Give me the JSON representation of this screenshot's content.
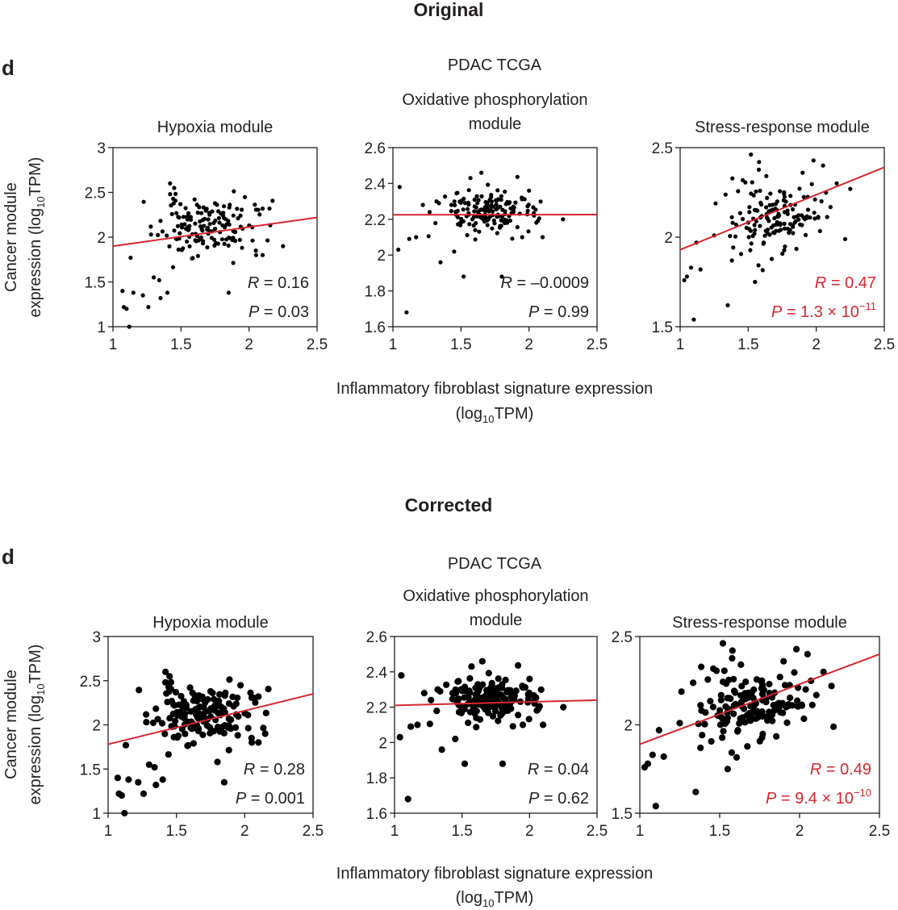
{
  "chart_data": {
    "type": "scatter",
    "figure_title": "PDAC TCGA",
    "panel_letter": "d",
    "xlabel": "Inflammatory fibroblast signature expression",
    "xlabel_units": {
      "prefix": "(log",
      "sub": "10",
      "suffix": "TPM)"
    },
    "ylabel": "Cancer module",
    "ylabel_units": {
      "prefix": "expression (log",
      "sub": "10",
      "suffix": "TPM)"
    },
    "colors": {
      "points": "#000000",
      "fit_line": "#d7262e",
      "stat_black": "#231f20",
      "stat_red": "#d7262e"
    },
    "versions": [
      {
        "heading": "Original",
        "point_style": "small",
        "panels": [
          {
            "title_lines": [
              "Hypoxia module"
            ],
            "xlim": [
              1,
              2.5
            ],
            "ylim": [
              1,
              3
            ],
            "xticks": [
              1,
              1.5,
              2,
              2.5
            ],
            "xtick_labels": [
              "1",
              "1.5",
              "2",
              "2.5"
            ],
            "yticks": [
              1,
              1.5,
              2,
              2.5,
              3
            ],
            "ytick_labels": [
              "1",
              "1.5",
              "2",
              "2.5",
              "3"
            ],
            "fit_line": {
              "x0": 1,
              "y0": 1.9,
              "x1": 2.5,
              "y1": 2.22
            },
            "stats": {
              "R": "0.16",
              "P_base": "0.03",
              "P_exp": null,
              "color": "black"
            },
            "cluster": {
              "cx": 1.68,
              "cy": 2.12,
              "sx": 0.17,
              "sy": 0.16,
              "n": 150,
              "seed": 11
            },
            "extra_points": [
              [
                1.08,
                1.22
              ],
              [
                1.1,
                1.2
              ],
              [
                1.12,
                1.0
              ],
              [
                1.07,
                1.4
              ],
              [
                1.15,
                1.38
              ],
              [
                1.22,
                1.35
              ],
              [
                1.26,
                1.22
              ],
              [
                1.3,
                1.55
              ],
              [
                1.35,
                1.32
              ],
              [
                1.4,
                1.38
              ],
              [
                1.13,
                1.77
              ],
              [
                1.28,
                2.03
              ],
              [
                1.34,
                1.52
              ],
              [
                1.45,
                2.55
              ],
              [
                1.42,
                2.6
              ],
              [
                1.85,
                1.38
              ],
              [
                2.1,
                2.32
              ],
              [
                2.15,
                2.32
              ],
              [
                2.05,
                1.85
              ],
              [
                2.1,
                1.8
              ],
              [
                2.25,
                1.9
              ]
            ]
          },
          {
            "title_lines": [
              "Oxidative phosphorylation",
              "module"
            ],
            "xlim": [
              1,
              2.5
            ],
            "ylim": [
              1.6,
              2.6
            ],
            "xticks": [
              1,
              1.5,
              2,
              2.5
            ],
            "xtick_labels": [
              "1",
              "1.5",
              "2",
              "2.5"
            ],
            "yticks": [
              1.6,
              1.8,
              2,
              2.2,
              2.4,
              2.6
            ],
            "ytick_labels": [
              "1.6",
              "1.8",
              "2",
              "2.2",
              "2.4",
              "2.6"
            ],
            "fit_line": {
              "x0": 1,
              "y0": 2.225,
              "x1": 2.5,
              "y1": 2.226
            },
            "stats": {
              "R": "–0.0009",
              "P_base": "0.99",
              "P_exp": null,
              "color": "black"
            },
            "cluster": {
              "cx": 1.7,
              "cy": 2.24,
              "sx": 0.17,
              "sy": 0.06,
              "n": 155,
              "seed": 23
            },
            "extra_points": [
              [
                1.1,
                1.68
              ],
              [
                1.05,
                2.38
              ],
              [
                1.04,
                2.03
              ],
              [
                1.12,
                2.09
              ],
              [
                1.17,
                2.1
              ],
              [
                1.27,
                2.24
              ],
              [
                1.35,
                1.96
              ],
              [
                1.45,
                2.02
              ],
              [
                1.52,
                1.88
              ],
              [
                1.57,
                2.43
              ],
              [
                1.65,
                2.46
              ],
              [
                1.8,
                1.88
              ],
              [
                1.95,
                2.1
              ],
              [
                2.0,
                2.36
              ],
              [
                2.25,
                2.2
              ],
              [
                2.1,
                2.1
              ],
              [
                1.32,
                2.3
              ],
              [
                1.22,
                2.28
              ]
            ]
          },
          {
            "title_lines": [
              "Stress-response module"
            ],
            "xlim": [
              1,
              2.5
            ],
            "ylim": [
              1.5,
              2.5
            ],
            "xticks": [
              1,
              1.5,
              2,
              2.5
            ],
            "xtick_labels": [
              "1",
              "1.5",
              "2",
              "2.5"
            ],
            "yticks": [
              1.5,
              2,
              2.5
            ],
            "ytick_labels": [
              "1.5",
              "2",
              "2.5"
            ],
            "fit_line": {
              "x0": 1,
              "y0": 1.93,
              "x1": 2.5,
              "y1": 2.39
            },
            "stats": {
              "R": "0.47",
              "P_base": "1.3 × 10",
              "P_exp": "−11",
              "color": "red"
            },
            "cluster": {
              "cx": 1.72,
              "cy": 2.12,
              "sx": 0.17,
              "sy": 0.11,
              "n": 150,
              "seed": 37
            },
            "extra_points": [
              [
                1.03,
                1.76
              ],
              [
                1.05,
                1.78
              ],
              [
                1.08,
                1.83
              ],
              [
                1.1,
                1.54
              ],
              [
                1.12,
                1.97
              ],
              [
                1.15,
                1.82
              ],
              [
                1.25,
                2.01
              ],
              [
                1.35,
                1.62
              ],
              [
                1.38,
                1.87
              ],
              [
                1.55,
                1.75
              ],
              [
                1.58,
                2.42
              ],
              [
                1.9,
                2.36
              ],
              [
                2.05,
                2.4
              ],
              [
                2.15,
                2.3
              ],
              [
                2.25,
                2.27
              ]
            ]
          }
        ]
      },
      {
        "heading": "Corrected",
        "point_style": "large",
        "panels": [
          {
            "title_lines": [
              "Hypoxia module"
            ],
            "xlim": [
              1,
              2.5
            ],
            "ylim": [
              1,
              3
            ],
            "xticks": [
              1,
              1.5,
              2,
              2.5
            ],
            "xtick_labels": [
              "1",
              "1.5",
              "2",
              "2.5"
            ],
            "yticks": [
              1,
              1.5,
              2,
              2.5,
              3
            ],
            "ytick_labels": [
              "1",
              "1.5",
              "2",
              "2.5",
              "3"
            ],
            "fit_line": {
              "x0": 1,
              "y0": 1.78,
              "x1": 2.5,
              "y1": 2.35
            },
            "stats": {
              "R": "0.28",
              "P_base": "0.001",
              "P_exp": null,
              "color": "black"
            },
            "cluster": {
              "cx": 1.68,
              "cy": 2.12,
              "sx": 0.17,
              "sy": 0.16,
              "n": 150,
              "seed": 11
            },
            "extra_points": [
              [
                1.08,
                1.22
              ],
              [
                1.1,
                1.2
              ],
              [
                1.12,
                1.0
              ],
              [
                1.07,
                1.4
              ],
              [
                1.15,
                1.38
              ],
              [
                1.22,
                1.35
              ],
              [
                1.26,
                1.22
              ],
              [
                1.3,
                1.55
              ],
              [
                1.35,
                1.32
              ],
              [
                1.4,
                1.38
              ],
              [
                1.13,
                1.77
              ],
              [
                1.28,
                2.03
              ],
              [
                1.34,
                1.52
              ],
              [
                1.45,
                2.55
              ],
              [
                1.42,
                2.6
              ],
              [
                1.85,
                1.35
              ],
              [
                2.1,
                2.32
              ],
              [
                2.15,
                1.9
              ],
              [
                2.05,
                1.85
              ],
              [
                2.1,
                1.8
              ],
              [
                1.8,
                1.58
              ]
            ]
          },
          {
            "title_lines": [
              "Oxidative phosphorylation",
              "module"
            ],
            "xlim": [
              1,
              2.5
            ],
            "ylim": [
              1.6,
              2.6
            ],
            "xticks": [
              1,
              1.5,
              2,
              2.5
            ],
            "xtick_labels": [
              "1",
              "1.5",
              "2",
              "2.5"
            ],
            "yticks": [
              1.6,
              1.8,
              2,
              2.2,
              2.4,
              2.6
            ],
            "ytick_labels": [
              "1.6",
              "1.8",
              "2",
              "2.2",
              "2.4",
              "2.6"
            ],
            "fit_line": {
              "x0": 1,
              "y0": 2.21,
              "x1": 2.5,
              "y1": 2.24
            },
            "stats": {
              "R": "0.04",
              "P_base": "0.62",
              "P_exp": null,
              "color": "black"
            },
            "cluster": {
              "cx": 1.7,
              "cy": 2.24,
              "sx": 0.17,
              "sy": 0.06,
              "n": 155,
              "seed": 23
            },
            "extra_points": [
              [
                1.1,
                1.68
              ],
              [
                1.05,
                2.38
              ],
              [
                1.04,
                2.03
              ],
              [
                1.12,
                2.09
              ],
              [
                1.17,
                2.1
              ],
              [
                1.27,
                2.24
              ],
              [
                1.35,
                1.96
              ],
              [
                1.45,
                2.02
              ],
              [
                1.52,
                1.88
              ],
              [
                1.57,
                2.43
              ],
              [
                1.65,
                2.46
              ],
              [
                1.8,
                1.88
              ],
              [
                1.95,
                2.1
              ],
              [
                2.0,
                2.36
              ],
              [
                2.25,
                2.2
              ],
              [
                2.1,
                2.1
              ],
              [
                1.32,
                2.3
              ],
              [
                1.22,
                2.28
              ]
            ]
          },
          {
            "title_lines": [
              "Stress-response module"
            ],
            "xlim": [
              1,
              2.5
            ],
            "ylim": [
              1.5,
              2.5
            ],
            "xticks": [
              1,
              1.5,
              2,
              2.5
            ],
            "xtick_labels": [
              "1",
              "1.5",
              "2",
              "2.5"
            ],
            "yticks": [
              1.5,
              2,
              2.5
            ],
            "ytick_labels": [
              "1.5",
              "2",
              "2.5"
            ],
            "fit_line": {
              "x0": 1,
              "y0": 1.89,
              "x1": 2.5,
              "y1": 2.4
            },
            "stats": {
              "R": "0.49",
              "P_base": "9.4 × 10",
              "P_exp": "−10",
              "color": "red"
            },
            "cluster": {
              "cx": 1.72,
              "cy": 2.12,
              "sx": 0.17,
              "sy": 0.11,
              "n": 150,
              "seed": 37
            },
            "extra_points": [
              [
                1.03,
                1.76
              ],
              [
                1.05,
                1.78
              ],
              [
                1.08,
                1.83
              ],
              [
                1.1,
                1.54
              ],
              [
                1.12,
                1.97
              ],
              [
                1.15,
                1.82
              ],
              [
                1.25,
                2.01
              ],
              [
                1.35,
                1.62
              ],
              [
                1.38,
                1.87
              ],
              [
                1.55,
                1.75
              ],
              [
                1.58,
                2.42
              ],
              [
                1.9,
                2.36
              ],
              [
                2.05,
                2.4
              ],
              [
                2.15,
                2.3
              ],
              [
                2.2,
                2.22
              ]
            ]
          }
        ]
      }
    ]
  }
}
